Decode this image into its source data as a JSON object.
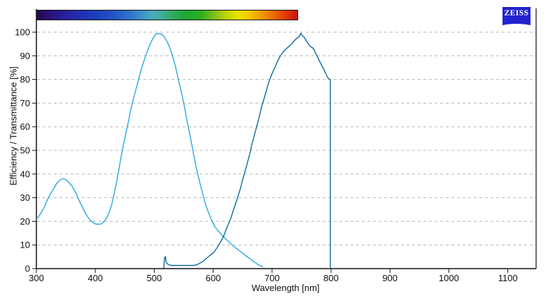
{
  "branding": {
    "logo_text": "ZEISS",
    "logo_color": "#2222CE"
  },
  "colorbar": {
    "description": "visible-light spectrum bar aligned to wavelength axis",
    "stops": [
      [
        0.0,
        "#23094B"
      ],
      [
        0.05,
        "#2B1278"
      ],
      [
        0.11,
        "#27219D"
      ],
      [
        0.17,
        "#2130B2"
      ],
      [
        0.23,
        "#1D3FBC"
      ],
      [
        0.29,
        "#2252C4"
      ],
      [
        0.35,
        "#2F70CC"
      ],
      [
        0.4,
        "#3B90CC"
      ],
      [
        0.44,
        "#49ACBE"
      ],
      [
        0.48,
        "#41AE93"
      ],
      [
        0.52,
        "#31AA5C"
      ],
      [
        0.57,
        "#1DA732"
      ],
      [
        0.63,
        "#2EAE22"
      ],
      [
        0.68,
        "#7DBF17"
      ],
      [
        0.73,
        "#C0D40C"
      ],
      [
        0.77,
        "#E8E200"
      ],
      [
        0.81,
        "#F2CC00"
      ],
      [
        0.85,
        "#F1A500"
      ],
      [
        0.89,
        "#EE7F00"
      ],
      [
        0.93,
        "#E85200"
      ],
      [
        0.97,
        "#DB2B00"
      ],
      [
        1.0,
        "#C61511"
      ]
    ]
  },
  "chart_data": {
    "type": "line",
    "title": "",
    "xlabel": "Wavelength [nm]",
    "ylabel": "Efficiency / Transmittance [%]",
    "xlim": [
      300,
      1148
    ],
    "ylim": [
      0,
      100
    ],
    "x_ticks": [
      300,
      400,
      500,
      600,
      700,
      800,
      900,
      1000,
      1100
    ],
    "y_ticks": [
      0,
      10,
      20,
      30,
      40,
      50,
      60,
      70,
      80,
      90,
      100
    ],
    "grid": "horizontal dashed gridlines at every 10%, no vertical gridlines",
    "grid_color": "#b5b5b5",
    "axis_color": "#111118",
    "legend": "none",
    "series": [
      {
        "name": "curve-light-blue",
        "color": "#29A9E1",
        "points": [
          [
            300,
            21
          ],
          [
            303,
            21.8
          ],
          [
            306,
            22.8
          ],
          [
            310,
            24.5
          ],
          [
            314,
            26.5
          ],
          [
            318,
            28.7
          ],
          [
            322,
            30.8
          ],
          [
            326,
            32.6
          ],
          [
            330,
            34.2
          ],
          [
            334,
            35.8
          ],
          [
            338,
            37
          ],
          [
            342,
            37.8
          ],
          [
            345,
            38
          ],
          [
            348,
            37.8
          ],
          [
            352,
            37.2
          ],
          [
            356,
            36.2
          ],
          [
            360,
            35
          ],
          [
            364,
            33.3
          ],
          [
            368,
            31.3
          ],
          [
            372,
            29.2
          ],
          [
            376,
            27
          ],
          [
            380,
            25
          ],
          [
            384,
            23.2
          ],
          [
            388,
            21.6
          ],
          [
            392,
            20.3
          ],
          [
            396,
            19.5
          ],
          [
            400,
            19
          ],
          [
            404,
            18.8
          ],
          [
            408,
            18.8
          ],
          [
            412,
            19.2
          ],
          [
            416,
            20.2
          ],
          [
            420,
            21.8
          ],
          [
            424,
            24.2
          ],
          [
            428,
            27.5
          ],
          [
            432,
            31.5
          ],
          [
            436,
            36.5
          ],
          [
            440,
            42
          ],
          [
            444,
            47.3
          ],
          [
            448,
            52.5
          ],
          [
            452,
            57.5
          ],
          [
            456,
            62.2
          ],
          [
            460,
            66.8
          ],
          [
            464,
            71
          ],
          [
            468,
            75
          ],
          [
            472,
            78.8
          ],
          [
            476,
            82.4
          ],
          [
            480,
            85.8
          ],
          [
            484,
            89
          ],
          [
            488,
            91.8
          ],
          [
            492,
            94.3
          ],
          [
            496,
            96.5
          ],
          [
            500,
            98.4
          ],
          [
            503,
            99.2
          ],
          [
            507,
            99.4
          ],
          [
            511,
            99.3
          ],
          [
            515,
            98.6
          ],
          [
            519,
            97.2
          ],
          [
            523,
            95.3
          ],
          [
            527,
            93
          ],
          [
            531,
            90
          ],
          [
            535,
            86.4
          ],
          [
            539,
            82.4
          ],
          [
            543,
            78
          ],
          [
            547,
            73.4
          ],
          [
            551,
            68.6
          ],
          [
            555,
            63.6
          ],
          [
            559,
            58.4
          ],
          [
            563,
            53.2
          ],
          [
            567,
            48
          ],
          [
            571,
            43.2
          ],
          [
            575,
            38.8
          ],
          [
            579,
            34.6
          ],
          [
            583,
            30.8
          ],
          [
            587,
            27.4
          ],
          [
            591,
            24.4
          ],
          [
            595,
            21.8
          ],
          [
            599,
            19.6
          ],
          [
            603,
            17.8
          ],
          [
            607,
            16.4
          ],
          [
            611,
            15.2
          ],
          [
            615,
            14.2
          ],
          [
            619,
            13.2
          ],
          [
            623,
            12.2
          ],
          [
            627,
            11.2
          ],
          [
            631,
            10.3
          ],
          [
            635,
            9.4
          ],
          [
            639,
            8.6
          ],
          [
            643,
            7.9
          ],
          [
            647,
            7.1
          ],
          [
            651,
            6.3
          ],
          [
            655,
            5.5
          ],
          [
            659,
            4.8
          ],
          [
            663,
            4.1
          ],
          [
            667,
            3.3
          ],
          [
            671,
            2.6
          ],
          [
            675,
            1.9
          ],
          [
            679,
            1.3
          ],
          [
            682,
            1
          ],
          [
            685,
            0.8
          ]
        ]
      },
      {
        "name": "curve-dark-blue",
        "color": "#0F6B9B",
        "points": [
          [
            516,
            0.2
          ],
          [
            517,
            2.5
          ],
          [
            518,
            4.9
          ],
          [
            519,
            5
          ],
          [
            520,
            3.2
          ],
          [
            521,
            2.5
          ],
          [
            523,
            1.8
          ],
          [
            526,
            1.5
          ],
          [
            530,
            1.4
          ],
          [
            536,
            1.3
          ],
          [
            542,
            1.3
          ],
          [
            548,
            1.3
          ],
          [
            554,
            1.3
          ],
          [
            560,
            1.3
          ],
          [
            566,
            1.4
          ],
          [
            570,
            1.5
          ],
          [
            574,
            1.8
          ],
          [
            578,
            2.3
          ],
          [
            582,
            3
          ],
          [
            586,
            3.8
          ],
          [
            590,
            4.6
          ],
          [
            594,
            5.4
          ],
          [
            598,
            6.2
          ],
          [
            602,
            7.2
          ],
          [
            606,
            8.6
          ],
          [
            610,
            10.2
          ],
          [
            614,
            12
          ],
          [
            618,
            14
          ],
          [
            622,
            16.4
          ],
          [
            626,
            18.9
          ],
          [
            630,
            21.5
          ],
          [
            634,
            24.3
          ],
          [
            638,
            27.3
          ],
          [
            642,
            30.5
          ],
          [
            646,
            33.9
          ],
          [
            650,
            37.4
          ],
          [
            654,
            41
          ],
          [
            658,
            44.8
          ],
          [
            662,
            48.7
          ],
          [
            666,
            52.6
          ],
          [
            670,
            56.5
          ],
          [
            674,
            60.4
          ],
          [
            678,
            64.2
          ],
          [
            682,
            68
          ],
          [
            686,
            71.6
          ],
          [
            690,
            75.1
          ],
          [
            694,
            78.3
          ],
          [
            698,
            81.2
          ],
          [
            702,
            83.8
          ],
          [
            706,
            86
          ],
          [
            710,
            88
          ],
          [
            714,
            89.9
          ],
          [
            718,
            91.4
          ],
          [
            722,
            92.6
          ],
          [
            725,
            93.2
          ],
          [
            728,
            93.9
          ],
          [
            731,
            94.6
          ],
          [
            734,
            95.3
          ],
          [
            737,
            96.2
          ],
          [
            740,
            97
          ],
          [
            742,
            97.3
          ],
          [
            744,
            97.9
          ],
          [
            746,
            98.1
          ],
          [
            748,
            98.9
          ],
          [
            749,
            99.5
          ],
          [
            750,
            99
          ],
          [
            752,
            98.4
          ],
          [
            754,
            98
          ],
          [
            756,
            97.2
          ],
          [
            758,
            96.4
          ],
          [
            760,
            95.6
          ],
          [
            762,
            94.8
          ],
          [
            764,
            94.3
          ],
          [
            766,
            93.8
          ],
          [
            768,
            93.5
          ],
          [
            770,
            93.2
          ],
          [
            772,
            92
          ],
          [
            774,
            91
          ],
          [
            776,
            90
          ],
          [
            778,
            89
          ],
          [
            780,
            88
          ],
          [
            782,
            87
          ],
          [
            784,
            86
          ],
          [
            786,
            85.2
          ],
          [
            788,
            84.1
          ],
          [
            790,
            83
          ],
          [
            792,
            82
          ],
          [
            794,
            80.9
          ],
          [
            796,
            80.3
          ],
          [
            798,
            80
          ],
          [
            799,
            79.8
          ],
          [
            799,
            0
          ]
        ]
      }
    ]
  }
}
